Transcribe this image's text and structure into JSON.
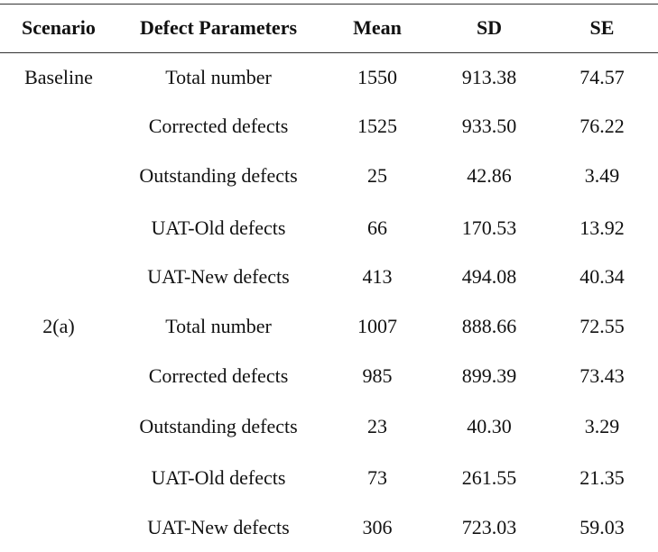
{
  "table": {
    "headers": [
      "Scenario",
      "Defect Parameters",
      "Mean",
      "SD",
      "SE"
    ],
    "rows": [
      {
        "scenario": "Baseline",
        "parameter": "Total number",
        "mean": "1550",
        "sd": "913.38",
        "se": "74.57"
      },
      {
        "scenario": "",
        "parameter": "Corrected defects",
        "mean": "1525",
        "sd": "933.50",
        "se": "76.22"
      },
      {
        "scenario": "",
        "parameter": "Outstanding defects",
        "mean": "25",
        "sd": "42.86",
        "se": "3.49"
      },
      {
        "scenario": "",
        "parameter": "UAT-Old defects",
        "mean": "66",
        "sd": "170.53",
        "se": "13.92"
      },
      {
        "scenario": "",
        "parameter": "UAT-New defects",
        "mean": "413",
        "sd": "494.08",
        "se": "40.34"
      },
      {
        "scenario": "2(a)",
        "parameter": "Total number",
        "mean": "1007",
        "sd": "888.66",
        "se": "72.55"
      },
      {
        "scenario": "",
        "parameter": "Corrected defects",
        "mean": "985",
        "sd": "899.39",
        "se": "73.43"
      },
      {
        "scenario": "",
        "parameter": "Outstanding defects",
        "mean": "23",
        "sd": "40.30",
        "se": "3.29"
      },
      {
        "scenario": "",
        "parameter": "UAT-Old defects",
        "mean": "73",
        "sd": "261.55",
        "se": "21.35"
      },
      {
        "scenario": "",
        "parameter": "UAT-New defects",
        "mean": "306",
        "sd": "723.03",
        "se": "59.03"
      }
    ]
  }
}
